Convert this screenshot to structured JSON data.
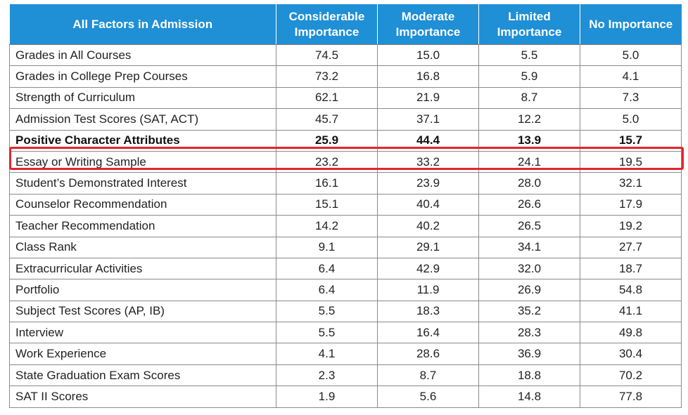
{
  "table": {
    "headers": [
      "All Factors in Admission",
      "Considerable Importance",
      "Moderate Importance",
      "Limited Importance",
      "No Importance"
    ],
    "header_color": "#1f8fd6",
    "highlight_color": "#e3262b",
    "highlighted_row": "Essay or Writing Sample",
    "rows": [
      {
        "factor": "Grades in All Courses",
        "considerable": "74.5",
        "moderate": "15.0",
        "limited": "5.5",
        "none": "5.0"
      },
      {
        "factor": "Grades in College Prep Courses",
        "considerable": "73.2",
        "moderate": "16.8",
        "limited": "5.9",
        "none": "4.1"
      },
      {
        "factor": "Strength of Curriculum",
        "considerable": "62.1",
        "moderate": "21.9",
        "limited": "8.7",
        "none": "7.3"
      },
      {
        "factor": "Admission Test Scores (SAT, ACT)",
        "considerable": "45.7",
        "moderate": "37.1",
        "limited": "12.2",
        "none": "5.0"
      },
      {
        "factor": "Positive Character Attributes",
        "considerable": "25.9",
        "moderate": "44.4",
        "limited": "13.9",
        "none": "15.7"
      },
      {
        "factor": "Essay or Writing Sample",
        "considerable": "23.2",
        "moderate": "33.2",
        "limited": "24.1",
        "none": "19.5"
      },
      {
        "factor": "Student’s Demonstrated Interest",
        "considerable": "16.1",
        "moderate": "23.9",
        "limited": "28.0",
        "none": "32.1"
      },
      {
        "factor": "Counselor Recommendation",
        "considerable": "15.1",
        "moderate": "40.4",
        "limited": "26.6",
        "none": "17.9"
      },
      {
        "factor": "Teacher Recommendation",
        "considerable": "14.2",
        "moderate": "40.2",
        "limited": "26.5",
        "none": "19.2"
      },
      {
        "factor": "Class Rank",
        "considerable": "9.1",
        "moderate": "29.1",
        "limited": "34.1",
        "none": "27.7"
      },
      {
        "factor": "Extracurricular Activities",
        "considerable": "6.4",
        "moderate": "42.9",
        "limited": "32.0",
        "none": "18.7"
      },
      {
        "factor": "Portfolio",
        "considerable": "6.4",
        "moderate": "11.9",
        "limited": "26.9",
        "none": "54.8"
      },
      {
        "factor": "Subject Test Scores (AP, IB)",
        "considerable": "5.5",
        "moderate": "18.3",
        "limited": "35.2",
        "none": "41.1"
      },
      {
        "factor": "Interview",
        "considerable": "5.5",
        "moderate": "16.4",
        "limited": "28.3",
        "none": "49.8"
      },
      {
        "factor": "Work Experience",
        "considerable": "4.1",
        "moderate": "28.6",
        "limited": "36.9",
        "none": "30.4"
      },
      {
        "factor": "State Graduation Exam Scores",
        "considerable": "2.3",
        "moderate": "8.7",
        "limited": "18.8",
        "none": "70.2"
      },
      {
        "factor": "SAT II Scores",
        "considerable": "1.9",
        "moderate": "5.6",
        "limited": "14.8",
        "none": "77.8"
      }
    ]
  }
}
